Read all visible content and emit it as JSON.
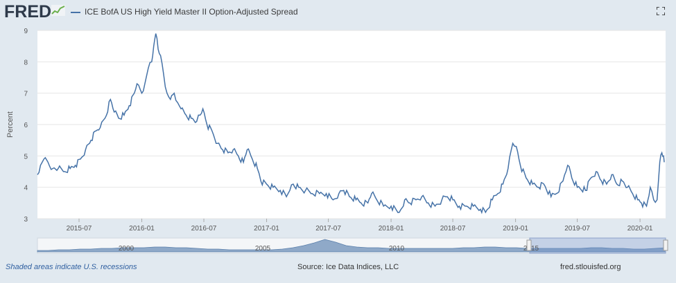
{
  "header": {
    "logo_text": "FRED",
    "legend_label": "ICE BofA US High Yield Master II Option-Adjusted Spread",
    "fullscreen_icon": "fullscreen-icon"
  },
  "footer": {
    "recession_note": "Shaded areas indicate U.S. recessions",
    "source": "Source: Ice Data Indices, LLC",
    "site": "fred.stlouisfed.org"
  },
  "colors": {
    "line": "#4572a7",
    "background": "#e1e9f0",
    "plot_bg": "#ffffff"
  },
  "chart_data": {
    "type": "line",
    "title": "",
    "ylabel": "Percent",
    "xlabel": "",
    "ylim": [
      3,
      9
    ],
    "yticks": [
      3,
      4,
      5,
      6,
      7,
      8,
      9
    ],
    "xlim": [
      "2015-03-01",
      "2020-03-16"
    ],
    "xticks": [
      "2015-07",
      "2016-01",
      "2016-07",
      "2017-01",
      "2017-07",
      "2018-01",
      "2018-07",
      "2019-01",
      "2019-07",
      "2020-01"
    ],
    "grid": true,
    "series": [
      {
        "name": "ICE BofA US High Yield Master II Option-Adjusted Spread",
        "points": [
          [
            "2015-03-01",
            4.4
          ],
          [
            "2015-03-10",
            4.7
          ],
          [
            "2015-03-20",
            4.9
          ],
          [
            "2015-04-01",
            4.8
          ],
          [
            "2015-04-15",
            4.6
          ],
          [
            "2015-05-01",
            4.6
          ],
          [
            "2015-05-20",
            4.5
          ],
          [
            "2015-06-05",
            4.6
          ],
          [
            "2015-06-20",
            4.7
          ],
          [
            "2015-07-05",
            4.9
          ],
          [
            "2015-07-20",
            5.2
          ],
          [
            "2015-08-05",
            5.5
          ],
          [
            "2015-08-20",
            5.8
          ],
          [
            "2015-09-01",
            5.9
          ],
          [
            "2015-09-15",
            6.2
          ],
          [
            "2015-10-01",
            6.8
          ],
          [
            "2015-10-12",
            6.4
          ],
          [
            "2015-10-25",
            6.2
          ],
          [
            "2015-11-10",
            6.3
          ],
          [
            "2015-11-25",
            6.6
          ],
          [
            "2015-12-10",
            7.0
          ],
          [
            "2015-12-18",
            7.3
          ],
          [
            "2016-01-01",
            7.0
          ],
          [
            "2016-01-10",
            7.3
          ],
          [
            "2016-01-20",
            7.8
          ],
          [
            "2016-01-30",
            8.0
          ],
          [
            "2016-02-05",
            8.5
          ],
          [
            "2016-02-11",
            8.9
          ],
          [
            "2016-02-18",
            8.4
          ],
          [
            "2016-02-25",
            8.2
          ],
          [
            "2016-03-05",
            7.6
          ],
          [
            "2016-03-15",
            7.0
          ],
          [
            "2016-03-25",
            6.8
          ],
          [
            "2016-04-05",
            7.0
          ],
          [
            "2016-04-15",
            6.7
          ],
          [
            "2016-04-25",
            6.5
          ],
          [
            "2016-05-10",
            6.3
          ],
          [
            "2016-05-25",
            6.2
          ],
          [
            "2016-06-10",
            6.1
          ],
          [
            "2016-06-20",
            6.3
          ],
          [
            "2016-06-28",
            6.5
          ],
          [
            "2016-07-10",
            6.0
          ],
          [
            "2016-07-25",
            5.8
          ],
          [
            "2016-08-10",
            5.4
          ],
          [
            "2016-08-25",
            5.2
          ],
          [
            "2016-09-10",
            5.1
          ],
          [
            "2016-09-25",
            5.2
          ],
          [
            "2016-10-10",
            5.0
          ],
          [
            "2016-10-25",
            4.8
          ],
          [
            "2016-11-05",
            5.2
          ],
          [
            "2016-11-20",
            4.9
          ],
          [
            "2016-12-05",
            4.6
          ],
          [
            "2016-12-15",
            4.2
          ],
          [
            "2017-01-01",
            4.1
          ],
          [
            "2017-01-20",
            4.0
          ],
          [
            "2017-02-10",
            3.9
          ],
          [
            "2017-02-28",
            3.7
          ],
          [
            "2017-03-10",
            3.9
          ],
          [
            "2017-03-20",
            4.1
          ],
          [
            "2017-04-05",
            4.0
          ],
          [
            "2017-04-25",
            3.9
          ],
          [
            "2017-05-15",
            3.8
          ],
          [
            "2017-06-05",
            3.8
          ],
          [
            "2017-06-25",
            3.8
          ],
          [
            "2017-07-15",
            3.6
          ],
          [
            "2017-08-01",
            3.8
          ],
          [
            "2017-08-15",
            3.9
          ],
          [
            "2017-09-01",
            3.7
          ],
          [
            "2017-09-20",
            3.6
          ],
          [
            "2017-10-05",
            3.5
          ],
          [
            "2017-10-25",
            3.5
          ],
          [
            "2017-11-05",
            3.8
          ],
          [
            "2017-11-20",
            3.6
          ],
          [
            "2017-12-10",
            3.4
          ],
          [
            "2018-01-01",
            3.4
          ],
          [
            "2018-01-25",
            3.2
          ],
          [
            "2018-02-10",
            3.6
          ],
          [
            "2018-02-25",
            3.5
          ],
          [
            "2018-03-15",
            3.6
          ],
          [
            "2018-04-01",
            3.7
          ],
          [
            "2018-04-20",
            3.5
          ],
          [
            "2018-05-10",
            3.4
          ],
          [
            "2018-05-30",
            3.6
          ],
          [
            "2018-06-15",
            3.7
          ],
          [
            "2018-07-01",
            3.6
          ],
          [
            "2018-07-20",
            3.4
          ],
          [
            "2018-08-10",
            3.4
          ],
          [
            "2018-08-30",
            3.4
          ],
          [
            "2018-09-20",
            3.3
          ],
          [
            "2018-10-05",
            3.2
          ],
          [
            "2018-10-25",
            3.6
          ],
          [
            "2018-11-10",
            3.8
          ],
          [
            "2018-11-25",
            4.1
          ],
          [
            "2018-12-10",
            4.6
          ],
          [
            "2018-12-24",
            5.4
          ],
          [
            "2019-01-03",
            5.3
          ],
          [
            "2019-01-15",
            4.7
          ],
          [
            "2019-02-01",
            4.3
          ],
          [
            "2019-02-20",
            4.1
          ],
          [
            "2019-03-10",
            4.0
          ],
          [
            "2019-03-25",
            4.1
          ],
          [
            "2019-04-15",
            3.7
          ],
          [
            "2019-05-01",
            3.8
          ],
          [
            "2019-05-20",
            4.2
          ],
          [
            "2019-06-03",
            4.7
          ],
          [
            "2019-06-15",
            4.3
          ],
          [
            "2019-07-01",
            4.0
          ],
          [
            "2019-07-25",
            3.9
          ],
          [
            "2019-08-10",
            4.3
          ],
          [
            "2019-08-25",
            4.5
          ],
          [
            "2019-09-10",
            4.2
          ],
          [
            "2019-09-25",
            4.1
          ],
          [
            "2019-10-10",
            4.4
          ],
          [
            "2019-10-25",
            4.1
          ],
          [
            "2019-11-10",
            4.2
          ],
          [
            "2019-11-25",
            4.0
          ],
          [
            "2019-12-10",
            3.8
          ],
          [
            "2019-12-25",
            3.6
          ],
          [
            "2020-01-05",
            3.5
          ],
          [
            "2020-01-20",
            3.4
          ],
          [
            "2020-01-31",
            4.0
          ],
          [
            "2020-02-10",
            3.6
          ],
          [
            "2020-02-20",
            3.6
          ],
          [
            "2020-02-28",
            4.8
          ],
          [
            "2020-03-05",
            5.1
          ],
          [
            "2020-03-10",
            5.0
          ],
          [
            "2020-03-12",
            4.8
          ]
        ]
      }
    ]
  },
  "navigator": {
    "labels": [
      "2000",
      "2005",
      "2010",
      "2015"
    ]
  }
}
